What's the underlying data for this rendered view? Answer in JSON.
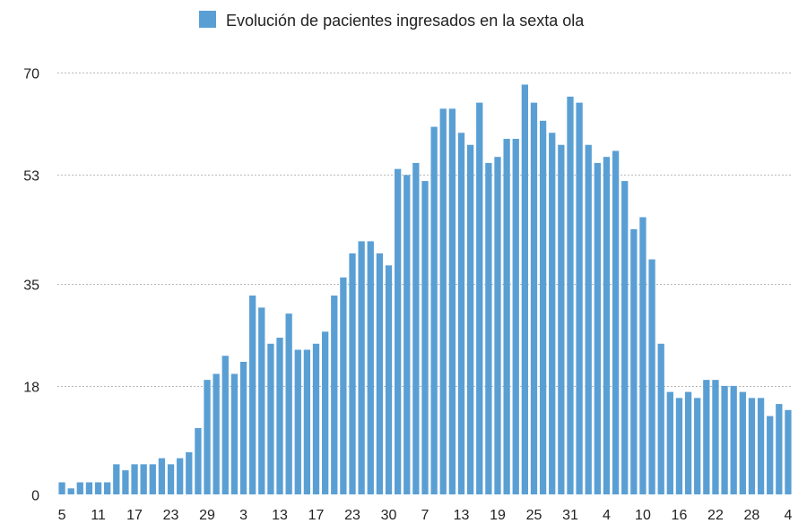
{
  "chart_data": {
    "type": "bar",
    "legend": {
      "label": "Evolución de pacientes ingresados en la sexta ola",
      "color": "#5a9fd4",
      "position": "top-center"
    },
    "bar_color": "#5a9fd4",
    "y_ticks": [
      0,
      18,
      35,
      53,
      70
    ],
    "ylim": [
      0,
      70
    ],
    "grid": true,
    "x_tick_labels": [
      {
        "index": 0,
        "label": "5"
      },
      {
        "index": 4,
        "label": "11"
      },
      {
        "index": 8,
        "label": "17"
      },
      {
        "index": 12,
        "label": "23"
      },
      {
        "index": 16,
        "label": "29"
      },
      {
        "index": 20,
        "label": "3"
      },
      {
        "index": 24,
        "label": "13"
      },
      {
        "index": 28,
        "label": "17"
      },
      {
        "index": 32,
        "label": "23"
      },
      {
        "index": 36,
        "label": "30"
      },
      {
        "index": 40,
        "label": "7"
      },
      {
        "index": 44,
        "label": "13"
      },
      {
        "index": 48,
        "label": "19"
      },
      {
        "index": 52,
        "label": "25"
      },
      {
        "index": 56,
        "label": "31"
      },
      {
        "index": 60,
        "label": "4"
      },
      {
        "index": 64,
        "label": "10"
      },
      {
        "index": 68,
        "label": "16"
      },
      {
        "index": 72,
        "label": "22"
      },
      {
        "index": 76,
        "label": "28"
      },
      {
        "index": 80,
        "label": "4"
      }
    ],
    "values": [
      2,
      1,
      2,
      2,
      2,
      2,
      5,
      4,
      5,
      5,
      5,
      6,
      5,
      6,
      7,
      11,
      19,
      20,
      23,
      20,
      22,
      33,
      31,
      25,
      26,
      30,
      24,
      24,
      25,
      27,
      33,
      36,
      40,
      42,
      42,
      40,
      38,
      54,
      53,
      55,
      52,
      61,
      64,
      64,
      60,
      58,
      65,
      55,
      56,
      59,
      59,
      68,
      65,
      62,
      60,
      58,
      66,
      65,
      58,
      55,
      56,
      57,
      52,
      44,
      46,
      39,
      25,
      17,
      16,
      17,
      16,
      19,
      19,
      18,
      18,
      17,
      16,
      16,
      13,
      15,
      14
    ]
  }
}
